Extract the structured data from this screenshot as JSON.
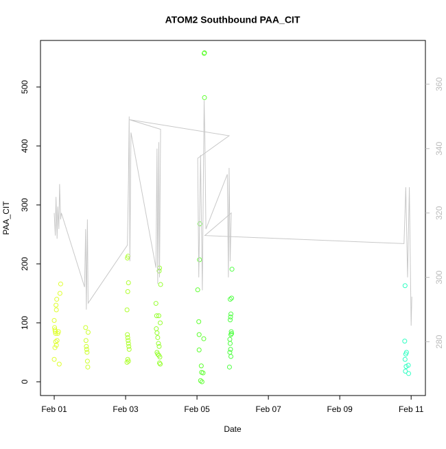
{
  "chart_data": {
    "type": "scatter",
    "title": "ATOM2 Southbound PAA_CIT",
    "x_label": "Date",
    "y_label": "PAA_CIT",
    "xlim": [
      0.615,
      11.4
    ],
    "ylim": [
      -23.3,
      579
    ],
    "y2lim": [
      263.3,
      373.6
    ],
    "xticks": [
      {
        "value": 1,
        "label": "Feb 01"
      },
      {
        "value": 3,
        "label": "Feb 03"
      },
      {
        "value": 5,
        "label": "Feb 05"
      },
      {
        "value": 7,
        "label": "Feb 07"
      },
      {
        "value": 9,
        "label": "Feb 09"
      },
      {
        "value": 11,
        "label": "Feb 11"
      }
    ],
    "yticks": [
      0,
      100,
      200,
      300,
      400,
      500
    ],
    "y2ticks": [
      280,
      300,
      320,
      340,
      360
    ],
    "y2_color": "#bbbbbb",
    "series": [
      {
        "color": "#dfff2e",
        "x": [
          1.0,
          1.01,
          1.02,
          1.03,
          1.04,
          1.05,
          1.06,
          1.07,
          1.0,
          1.02,
          1.04,
          1.06,
          1.08,
          1.1,
          1.12,
          1.14,
          1.16,
          1.18
        ],
        "values": [
          104,
          92,
          88,
          85,
          82,
          130,
          122,
          140,
          38,
          58,
          68,
          62,
          70,
          82,
          85,
          30,
          150,
          166
        ]
      },
      {
        "color": "#ccff2e",
        "x": [
          1.88,
          1.89,
          1.9,
          1.91,
          1.92,
          1.93,
          1.94,
          1.95
        ],
        "values": [
          92,
          70,
          60,
          55,
          50,
          35,
          25,
          84
        ]
      },
      {
        "color": "#aeff2e",
        "x": [
          3.05,
          3.07,
          3.08,
          3.06,
          3.04,
          3.05,
          3.06,
          3.07,
          3.08,
          3.09,
          3.1,
          3.06,
          3.08,
          3.04
        ],
        "values": [
          210,
          213,
          168,
          153,
          122,
          80,
          75,
          70,
          65,
          60,
          55,
          38,
          35,
          33
        ]
      },
      {
        "color": "#95ff2e",
        "x": [
          3.95,
          3.94,
          3.85,
          3.87,
          3.97,
          3.86,
          3.88,
          3.9,
          3.92,
          3.94,
          3.88,
          3.9,
          3.93,
          3.96,
          3.95,
          3.97,
          3.98,
          3.93
        ],
        "values": [
          193,
          188,
          133,
          112,
          100,
          90,
          83,
          75,
          65,
          60,
          50,
          47,
          45,
          42,
          32,
          30,
          165,
          112
        ]
      },
      {
        "color": "#5cff2e",
        "x": [
          5.2,
          5.21,
          5.21,
          5.08,
          5.07,
          5.02,
          5.05,
          5.06,
          5.19,
          5.06,
          5.12,
          5.13,
          5.17,
          5.1,
          5.14
        ],
        "values": [
          557,
          558,
          482,
          268,
          207,
          156,
          102,
          80,
          73,
          54,
          27,
          16,
          15,
          2,
          0
        ]
      },
      {
        "color": "#4dff40",
        "x": [
          5.98,
          5.97,
          5.93,
          5.95,
          5.94,
          5.93,
          5.96,
          5.97,
          5.95,
          5.92,
          5.93,
          5.94,
          5.92,
          5.95,
          5.91
        ],
        "values": [
          191,
          142,
          140,
          115,
          110,
          105,
          85,
          82,
          80,
          72,
          65,
          55,
          50,
          43,
          25
        ]
      },
      {
        "color": "#2effc2",
        "x": [
          10.83,
          10.82,
          10.87,
          10.85,
          10.83,
          10.92,
          10.86,
          10.84,
          10.93
        ],
        "values": [
          163,
          69,
          50,
          47,
          38,
          28,
          26,
          18,
          14
        ]
      },
      {
        "color": "#c8c8c8",
        "axis": "y2",
        "line": true,
        "x": [
          1.0,
          1.03,
          1.05,
          1.08,
          1.1,
          1.13,
          1.15,
          1.18,
          1.2,
          1.85,
          1.88,
          1.9,
          1.93,
          1.95,
          3.05,
          3.08,
          3.1,
          3.12,
          3.15,
          3.85,
          3.88,
          3.9,
          3.93,
          3.95,
          3.98,
          3.1,
          5.9,
          5.02,
          5.05,
          5.1,
          5.15,
          5.2,
          5.22,
          5.25,
          5.85,
          5.88,
          5.9,
          5.93,
          5.96,
          5.22,
          10.8,
          10.85,
          10.9,
          10.95,
          11.0,
          11.02
        ],
        "values": [
          320,
          313,
          325,
          312,
          322,
          315,
          329,
          318,
          320,
          297,
          315,
          290,
          318,
          292,
          310,
          330,
          350,
          305,
          345,
          303,
          340,
          298,
          342,
          300,
          346,
          349,
          344,
          337,
          300,
          338,
          296,
          355,
          344,
          315,
          332,
          300,
          334,
          305,
          320,
          313,
          310.5,
          328,
          300,
          328,
          285,
          294
        ]
      }
    ]
  }
}
